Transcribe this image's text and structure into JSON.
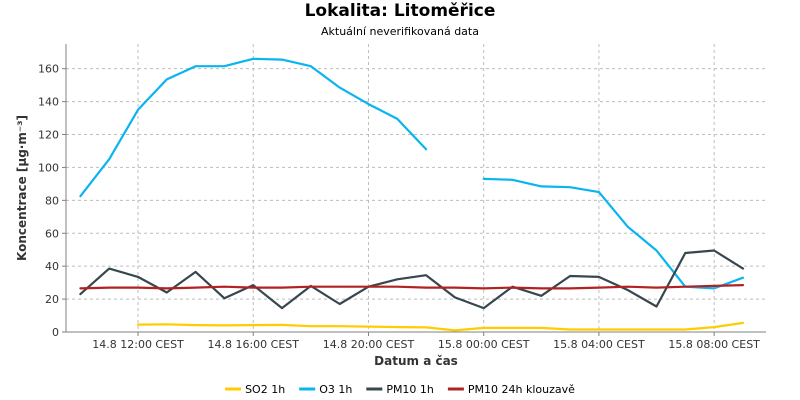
{
  "chart_data": {
    "type": "line",
    "title": "Lokalita: Litoměřice",
    "subtitle": "Aktuální neverifikovaná data",
    "xlabel": "Datum a čas",
    "ylabel": "Koncentrace [µg·m⁻³]",
    "ylim": [
      0,
      175
    ],
    "yticks": [
      0,
      20,
      40,
      60,
      80,
      100,
      120,
      140,
      160
    ],
    "xlim": [
      9.5,
      33.8
    ],
    "xticks": [
      {
        "x": 12,
        "label": "14.8 12:00 CEST"
      },
      {
        "x": 16,
        "label": "14.8 16:00 CEST"
      },
      {
        "x": 20,
        "label": "14.8 20:00 CEST"
      },
      {
        "x": 24,
        "label": "15.8 00:00 CEST"
      },
      {
        "x": 28,
        "label": "15.8 04:00 CEST"
      },
      {
        "x": 32,
        "label": "15.8 08:00 CEST"
      }
    ],
    "grid": true,
    "legend_position": "bottom",
    "series": [
      {
        "name": "SO2 1h",
        "color": "#ffcc00",
        "points": [
          [
            12,
            4.5
          ],
          [
            13,
            4.7
          ],
          [
            14,
            4.2
          ],
          [
            15,
            4
          ],
          [
            16,
            4.2
          ],
          [
            17,
            4.3
          ],
          [
            18,
            3.5
          ],
          [
            19,
            3.5
          ],
          [
            20,
            3.3
          ],
          [
            21,
            3
          ],
          [
            22,
            2.8
          ],
          [
            23,
            1
          ],
          [
            24,
            2.5
          ],
          [
            25,
            2.5
          ],
          [
            26,
            2.5
          ],
          [
            27,
            1.5
          ],
          [
            28,
            1.5
          ],
          [
            29,
            1.5
          ],
          [
            30,
            1.5
          ],
          [
            31,
            1.5
          ],
          [
            32,
            3
          ],
          [
            33,
            5.5
          ]
        ]
      },
      {
        "name": "O3 1h",
        "color": "#0ab4f0",
        "points": [
          [
            10,
            82.5
          ],
          [
            11,
            105
          ],
          [
            12,
            135
          ],
          [
            13,
            153.5
          ],
          [
            14,
            161.5
          ],
          [
            15,
            161.5
          ],
          [
            16,
            166
          ],
          [
            17,
            165.5
          ],
          [
            18,
            161.5
          ],
          [
            19,
            148.5
          ],
          [
            20,
            138.5
          ],
          [
            21,
            129.5
          ],
          [
            22,
            111
          ],
          [
            23,
            null
          ],
          [
            24,
            93
          ],
          [
            25,
            92.5
          ],
          [
            26,
            88.5
          ],
          [
            27,
            88
          ],
          [
            28,
            85
          ],
          [
            29,
            64
          ],
          [
            30,
            49.5
          ],
          [
            31,
            27.5
          ],
          [
            32,
            26.5
          ],
          [
            33,
            33
          ]
        ]
      },
      {
        "name": "PM10 1h",
        "color": "#37474f",
        "points": [
          [
            10,
            23
          ],
          [
            11,
            38.5
          ],
          [
            12,
            33.5
          ],
          [
            13,
            24
          ],
          [
            14,
            36.5
          ],
          [
            15,
            20.5
          ],
          [
            16,
            28.5
          ],
          [
            17,
            14.5
          ],
          [
            18,
            28
          ],
          [
            19,
            17
          ],
          [
            20,
            27.5
          ],
          [
            21,
            32
          ],
          [
            22,
            34.5
          ],
          [
            23,
            21
          ],
          [
            24,
            14.5
          ],
          [
            25,
            27.5
          ],
          [
            26,
            22
          ],
          [
            27,
            34
          ],
          [
            28,
            33.5
          ],
          [
            29,
            25.5
          ],
          [
            30,
            15.5
          ],
          [
            31,
            48
          ],
          [
            32,
            49.5
          ],
          [
            33,
            38.5
          ]
        ]
      },
      {
        "name": "PM10 24h klouzavě",
        "color": "#b22222",
        "points": [
          [
            10,
            26.5
          ],
          [
            11,
            27
          ],
          [
            12,
            27
          ],
          [
            13,
            26.5
          ],
          [
            14,
            27
          ],
          [
            15,
            27.5
          ],
          [
            16,
            27
          ],
          [
            17,
            27
          ],
          [
            18,
            27.5
          ],
          [
            19,
            27.5
          ],
          [
            20,
            27.5
          ],
          [
            21,
            27.5
          ],
          [
            22,
            27
          ],
          [
            23,
            27
          ],
          [
            24,
            26.5
          ],
          [
            25,
            27
          ],
          [
            26,
            26.5
          ],
          [
            27,
            26.5
          ],
          [
            28,
            27
          ],
          [
            29,
            27.5
          ],
          [
            30,
            27
          ],
          [
            31,
            27.5
          ],
          [
            32,
            28
          ],
          [
            33,
            28.5
          ]
        ]
      }
    ]
  }
}
